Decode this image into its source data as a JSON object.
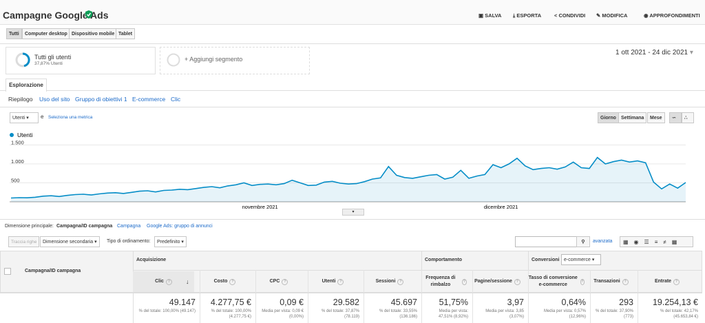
{
  "header": {
    "title": "Campagne Google Ads",
    "actions": [
      "SALVA",
      "ESPORTA",
      "CONDIVIDI",
      "MODIFICA",
      "APPROFONDIMENTI"
    ]
  },
  "device_tabs": [
    "Tutti",
    "Computer desktop",
    "Dispositivo mobile",
    "Tablet"
  ],
  "segment": {
    "name": "Tutti gli utenti",
    "share": "37,87% Utenti",
    "add": "+ Aggiungi segmento"
  },
  "date_range": "1 ott 2021 - 24 dic 2021",
  "explorer_tab": "Esplorazione",
  "subtabs": [
    "Riepilogo",
    "Uso del sito",
    "Gruppo di obiettivi 1",
    "E-commerce",
    "Clic"
  ],
  "metric_select": "Utenti",
  "conjunction": "e",
  "select_metric": "Seleziona una metrica",
  "granularity": [
    "Giorno",
    "Settimana",
    "Mese"
  ],
  "chart_data": {
    "type": "line",
    "categories": [
      null,
      null,
      null,
      null,
      null,
      null,
      null,
      null,
      null,
      null,
      null,
      null,
      null,
      null,
      null,
      null,
      null,
      null,
      null,
      null,
      null,
      null,
      null,
      null,
      null,
      null,
      null,
      null,
      null,
      null,
      null,
      "novembre 2021",
      null,
      null,
      null,
      null,
      null,
      null,
      null,
      null,
      null,
      null,
      null,
      null,
      null,
      null,
      null,
      null,
      null,
      null,
      null,
      null,
      null,
      null,
      null,
      null,
      null,
      null,
      null,
      null,
      null,
      "dicembre 2021",
      null,
      null,
      null,
      null,
      null,
      null,
      null,
      null,
      null,
      null,
      null,
      null,
      null,
      null,
      null,
      null,
      null,
      null,
      null,
      null,
      null,
      null,
      null
    ],
    "series": [
      {
        "name": "Utenti",
        "color": "#058dc7",
        "values": [
          100,
          110,
          105,
          120,
          150,
          160,
          140,
          170,
          190,
          200,
          180,
          210,
          230,
          240,
          220,
          250,
          280,
          290,
          260,
          300,
          310,
          330,
          320,
          350,
          380,
          400,
          370,
          420,
          450,
          500,
          430,
          460,
          470,
          450,
          480,
          570,
          500,
          430,
          440,
          520,
          540,
          490,
          470,
          480,
          530,
          600,
          630,
          930,
          700,
          640,
          620,
          660,
          700,
          720,
          600,
          650,
          830,
          620,
          680,
          720,
          980,
          900,
          1000,
          1150,
          950,
          850,
          880,
          900,
          860,
          920,
          1050,
          900,
          880,
          1170,
          1000,
          1060,
          1100,
          1050,
          1080,
          1030,
          520,
          340,
          470,
          360,
          510
        ]
      }
    ],
    "ylim": [
      0,
      1600
    ],
    "yticks": [
      500,
      {
        "value": 1000,
        "label": "1.000"
      },
      {
        "value": 1500,
        "label": "1.500"
      }
    ],
    "grid": true
  },
  "dimension": {
    "label": "Dimensione principale:",
    "options": [
      "Campagna/ID campagna",
      "Campagna",
      "Google Ads: gruppo di annunci"
    ]
  },
  "controls": {
    "plot_rows": "Traccia righe",
    "secondary": "Dimensione secondaria",
    "sort_label": "Tipo di ordinamento:",
    "sort": "Predefinito",
    "advanced": "avanzata"
  },
  "table": {
    "dimension_header": "Campagna/ID campagna",
    "groups": [
      "Acquisizione",
      "Comportamento",
      "Conversioni"
    ],
    "conversion_select": "e-commerce",
    "columns": [
      {
        "header": "Clic",
        "value": "49.147",
        "sub": "% del totale: 100,00% (49.147)"
      },
      {
        "header": "Costo",
        "value": "4.277,75 €",
        "sub": "% del totale: 100,00% (4.277,75 €)"
      },
      {
        "header": "CPC",
        "value": "0,09 €",
        "sub": "Media per vista: 0,09 € (0,00%)"
      },
      {
        "header": "Utenti",
        "value": "29.582",
        "sub": "% del totale: 37,87% (78.119)"
      },
      {
        "header": "Sessioni",
        "value": "45.697",
        "sub": "% del totale: 33,55% (136.186)"
      },
      {
        "header": "Frequenza di rimbalzo",
        "value": "51,75%",
        "sub": "Media per vista: 47,51% (8,92%)"
      },
      {
        "header": "Pagine/sessione",
        "value": "3,97",
        "sub": "Media per vista: 3,85 (3,07%)"
      },
      {
        "header": "Tasso di conversione e-commerce",
        "value": "0,64%",
        "sub": "Media per vista: 0,57% (12,96%)"
      },
      {
        "header": "Transazioni",
        "value": "293",
        "sub": "% del totale: 37,90% (773)"
      },
      {
        "header": "Entrate",
        "value": "19.254,13 €",
        "sub": "% del totale: 42,17% (45.653,84 €)"
      }
    ]
  }
}
